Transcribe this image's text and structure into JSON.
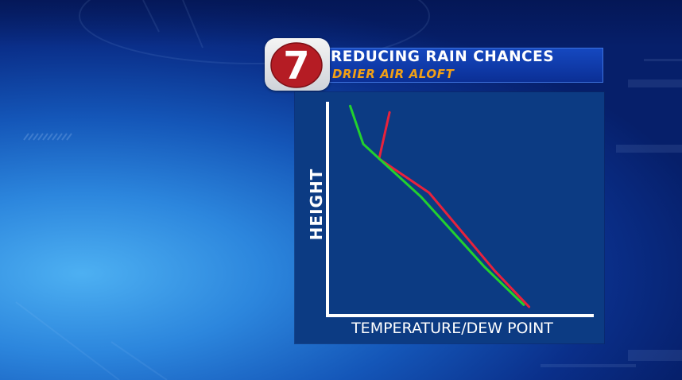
{
  "header": {
    "title": "REDUCING RAIN CHANCES",
    "subtitle": "DRIER AIR ALOFT",
    "logo_text": "7"
  },
  "colors": {
    "title": "#ffffff",
    "subtitle": "#f2a016",
    "panel": "#0c3b83",
    "logo_red": "#b51c24",
    "temperature_line": "#e8223c",
    "dew_point_line": "#22d12e",
    "axis": "#ffffff"
  },
  "chart_data": {
    "type": "line",
    "title": "",
    "xlabel": "TEMPERATURE/DEW POINT",
    "ylabel": "HEIGHT",
    "xlim": [
      0,
      100
    ],
    "ylim": [
      0,
      100
    ],
    "grid": false,
    "axis_ticks": false,
    "series": [
      {
        "color": "#e8223c",
        "points": [
          [
            76,
            3
          ],
          [
            63,
            20
          ],
          [
            38,
            57
          ],
          [
            19,
            73
          ],
          [
            23,
            95
          ]
        ]
      },
      {
        "color": "#22d12e",
        "points": [
          [
            74,
            4
          ],
          [
            59,
            22
          ],
          [
            35,
            55
          ],
          [
            20,
            72
          ],
          [
            13,
            80
          ],
          [
            8,
            98
          ]
        ]
      }
    ]
  }
}
